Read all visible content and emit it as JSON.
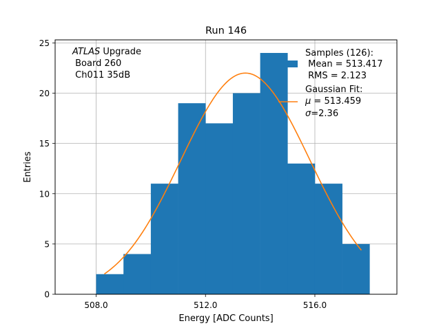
{
  "chart_data": {
    "type": "bar",
    "title": "Run 146",
    "xlabel": "Energy [ADC Counts]",
    "ylabel": "Entries",
    "xlim": [
      506.5,
      519.0
    ],
    "ylim": [
      0,
      25.3
    ],
    "xticks": [
      508.0,
      512.0,
      516.0
    ],
    "xtick_labels": [
      "508.0",
      "512.0",
      "516.0"
    ],
    "yticks": [
      0,
      5,
      10,
      15,
      20,
      25
    ],
    "ytick_labels": [
      "0",
      "5",
      "10",
      "15",
      "20",
      "25"
    ],
    "grid": true,
    "bin_edges": [
      508,
      509,
      510,
      511,
      512,
      513,
      514,
      515,
      516,
      517,
      518
    ],
    "counts": [
      2,
      4,
      11,
      19,
      17,
      20,
      24,
      13,
      11,
      5
    ],
    "bar_color": "#1f77b4",
    "fit": {
      "name": "Gaussian Fit",
      "mu": 513.459,
      "sigma": 2.36,
      "amplitude": 22.0,
      "x_range": [
        508.3,
        517.7
      ],
      "color": "#ff7f0e"
    },
    "annotation": {
      "italic": "ATLAS",
      "line1_rest": " Upgrade",
      "line2": " Board 260",
      "line3": " Ch011 35dB"
    },
    "legend": {
      "location": "top-right",
      "samples_line1": "Samples (126):",
      "samples_line2": " Mean = 513.417",
      "samples_line3": " RMS = 2.123",
      "fit_line1": "Gaussian Fit:",
      "fit_line2_symbol": "μ",
      "fit_line2_rest": " = 513.459",
      "fit_line3_symbol": "σ",
      "fit_line3_rest": "=2.36"
    }
  }
}
